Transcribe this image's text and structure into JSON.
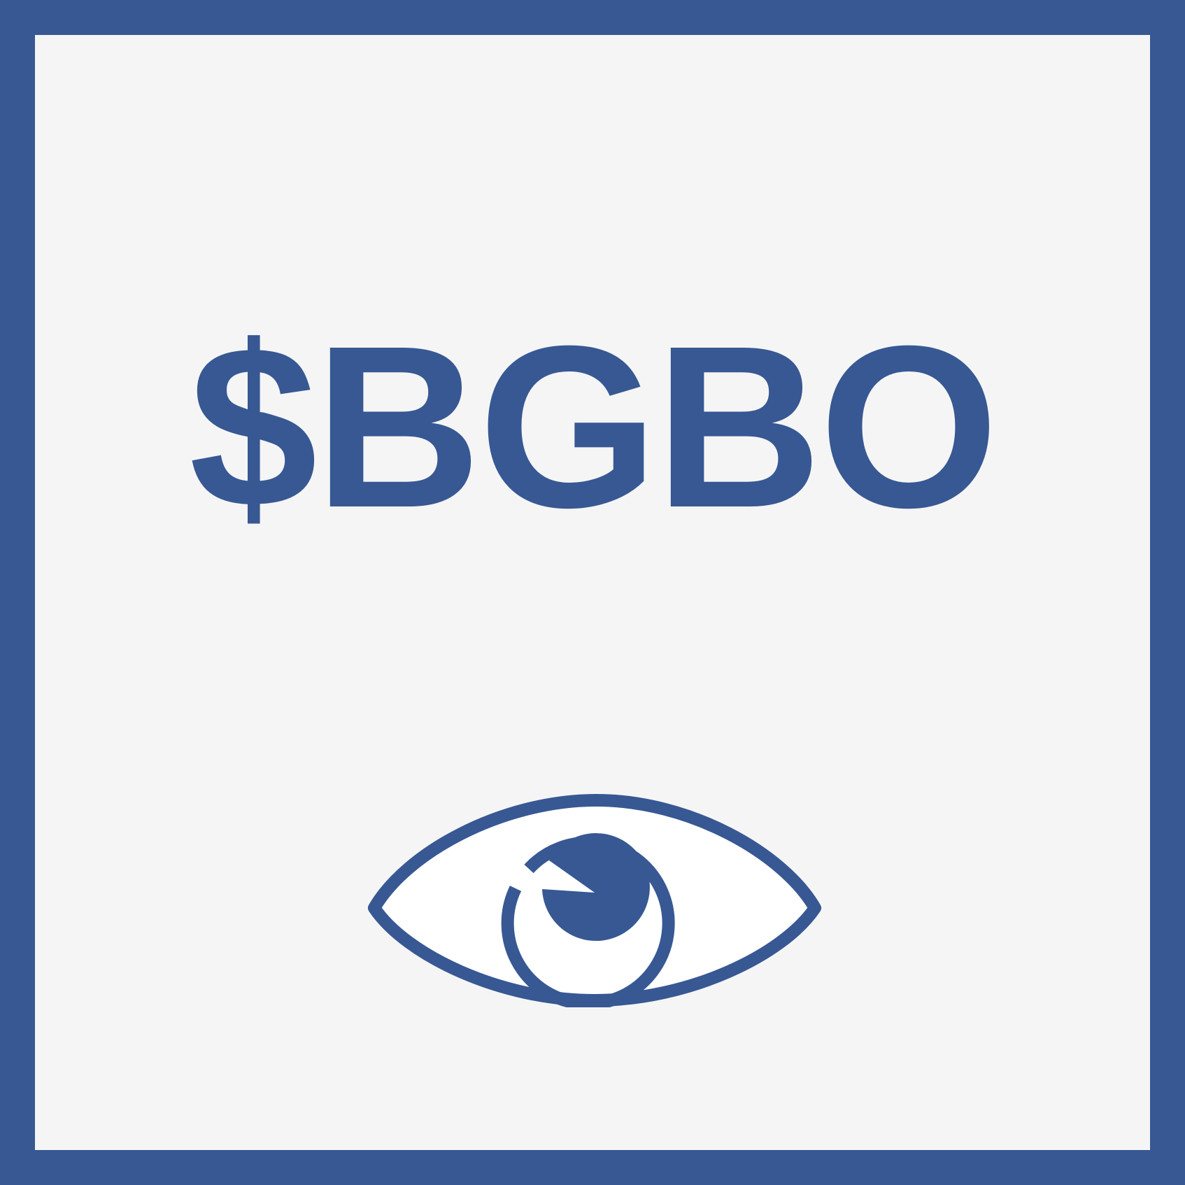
{
  "ticker": "$BGBO",
  "icon": "eye-icon",
  "colors": {
    "frame": "#375893",
    "background": "#f5f5f5",
    "eye_fill": "#ffffff"
  }
}
